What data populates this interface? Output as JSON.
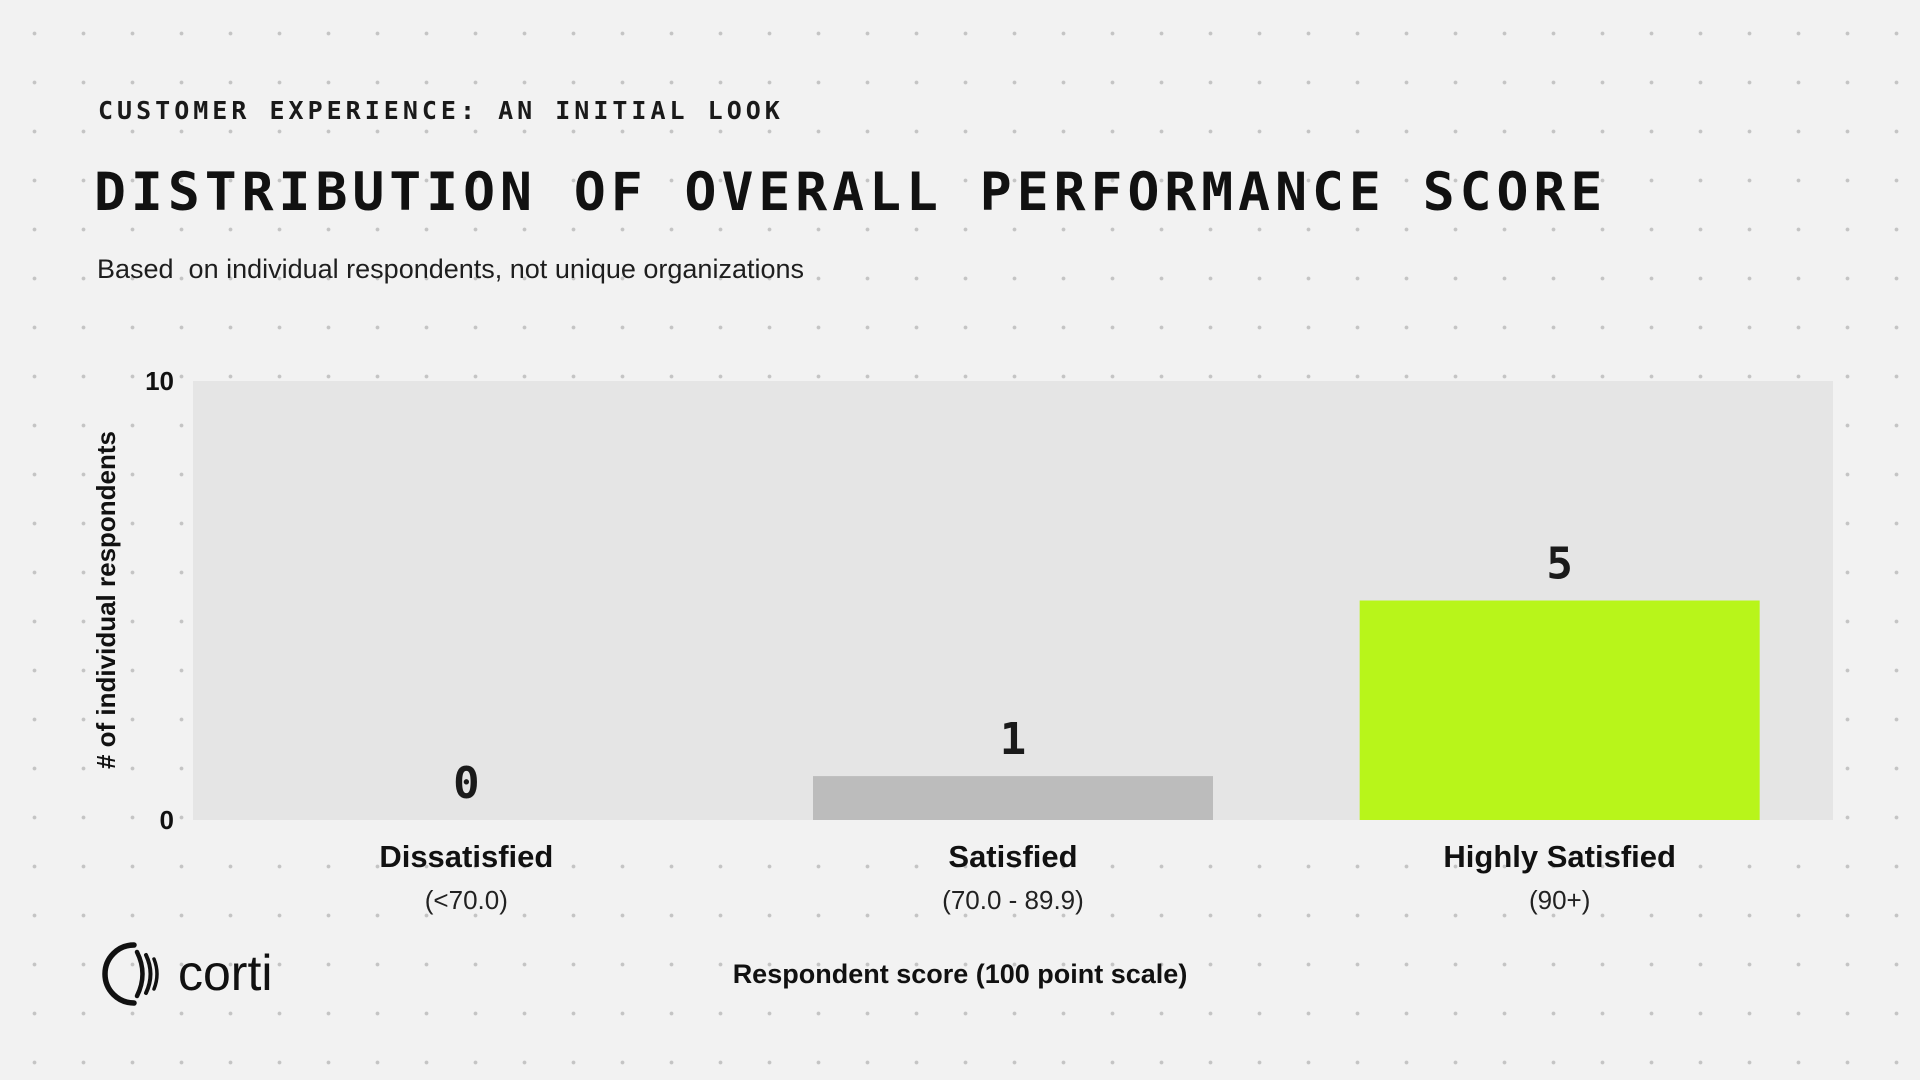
{
  "header": {
    "eyebrow": "CUSTOMER EXPERIENCE: AN INITIAL LOOK",
    "title": "DISTRIBUTION OF OVERALL PERFORMANCE SCORE",
    "subtitle": "Based  on individual respondents, not unique organizations"
  },
  "logo": {
    "icon": "corti-logo-icon",
    "text": "corti"
  },
  "chart_data": {
    "type": "bar",
    "categories": [
      "Dissatisfied",
      "Satisfied",
      "Highly Satisfied"
    ],
    "category_ranges": [
      "(<70.0)",
      "(70.0 - 89.9)",
      "(90+)"
    ],
    "values": [
      0,
      1,
      5
    ],
    "bar_colors": [
      "#bcbcbc",
      "#bcbcbc",
      "#b8f51a"
    ],
    "plot_background": "#e5e5e5",
    "ylim": [
      0,
      10
    ],
    "yticks": [
      0,
      10
    ],
    "xlabel": "Respondent score (100 point scale)",
    "ylabel": "# of individual respondents",
    "grid": false,
    "legend": "none"
  }
}
